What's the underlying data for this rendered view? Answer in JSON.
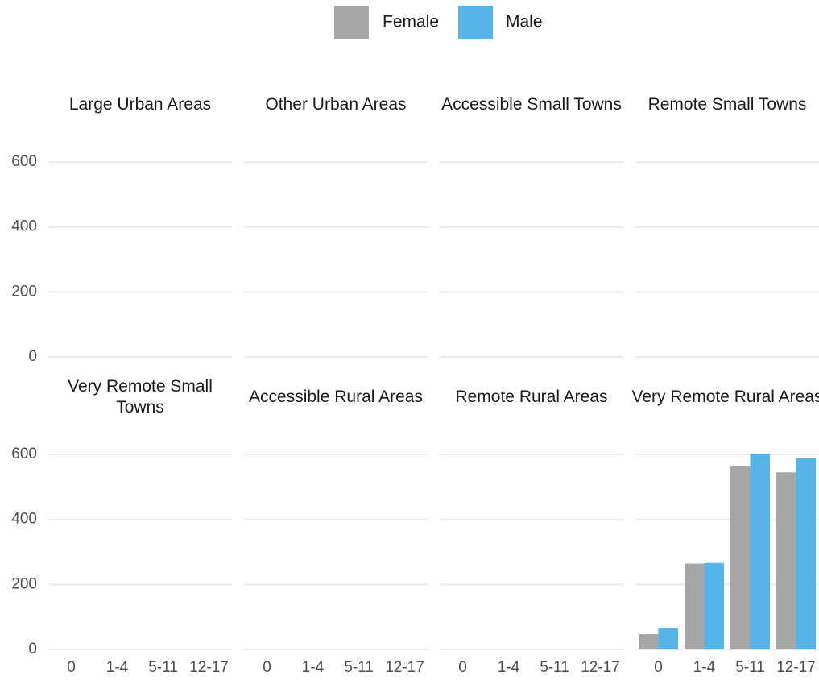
{
  "chart_data": [
    {
      "type": "bar",
      "title": "Large Urban Areas",
      "categories": [
        "0",
        "1-4",
        "5-11",
        "12-17"
      ],
      "ylim": [
        0,
        630
      ],
      "yticks": [
        0,
        200,
        400,
        600
      ],
      "grid": true,
      "series": [
        {
          "name": "Female",
          "color": "#a6a6a6",
          "values": [
            null,
            null,
            null,
            null
          ]
        },
        {
          "name": "Male",
          "color": "#56b4e9",
          "values": [
            null,
            null,
            null,
            null
          ]
        }
      ]
    },
    {
      "type": "bar",
      "title": "Other Urban Areas",
      "categories": [
        "0",
        "1-4",
        "5-11",
        "12-17"
      ],
      "ylim": [
        0,
        630
      ],
      "yticks": [
        0,
        200,
        400,
        600
      ],
      "grid": true,
      "series": [
        {
          "name": "Female",
          "color": "#a6a6a6",
          "values": [
            null,
            null,
            null,
            null
          ]
        },
        {
          "name": "Male",
          "color": "#56b4e9",
          "values": [
            null,
            null,
            null,
            null
          ]
        }
      ]
    },
    {
      "type": "bar",
      "title": "Accessible Small Towns",
      "categories": [
        "0",
        "1-4",
        "5-11",
        "12-17"
      ],
      "ylim": [
        0,
        630
      ],
      "yticks": [
        0,
        200,
        400,
        600
      ],
      "grid": true,
      "series": [
        {
          "name": "Female",
          "color": "#a6a6a6",
          "values": [
            null,
            null,
            null,
            null
          ]
        },
        {
          "name": "Male",
          "color": "#56b4e9",
          "values": [
            null,
            null,
            null,
            null
          ]
        }
      ]
    },
    {
      "type": "bar",
      "title": "Remote Small Towns",
      "categories": [
        "0",
        "1-4",
        "5-11",
        "12-17"
      ],
      "ylim": [
        0,
        630
      ],
      "yticks": [
        0,
        200,
        400,
        600
      ],
      "grid": true,
      "series": [
        {
          "name": "Female",
          "color": "#a6a6a6",
          "values": [
            null,
            null,
            null,
            null
          ]
        },
        {
          "name": "Male",
          "color": "#56b4e9",
          "values": [
            null,
            null,
            null,
            null
          ]
        }
      ]
    },
    {
      "type": "bar",
      "title": "Very Remote Small Towns",
      "categories": [
        "0",
        "1-4",
        "5-11",
        "12-17"
      ],
      "ylim": [
        0,
        630
      ],
      "yticks": [
        0,
        200,
        400,
        600
      ],
      "grid": true,
      "series": [
        {
          "name": "Female",
          "color": "#a6a6a6",
          "values": [
            null,
            null,
            null,
            null
          ]
        },
        {
          "name": "Male",
          "color": "#56b4e9",
          "values": [
            null,
            null,
            null,
            null
          ]
        }
      ]
    },
    {
      "type": "bar",
      "title": "Accessible Rural Areas",
      "categories": [
        "0",
        "1-4",
        "5-11",
        "12-17"
      ],
      "ylim": [
        0,
        630
      ],
      "yticks": [
        0,
        200,
        400,
        600
      ],
      "grid": true,
      "series": [
        {
          "name": "Female",
          "color": "#a6a6a6",
          "values": [
            null,
            null,
            null,
            null
          ]
        },
        {
          "name": "Male",
          "color": "#56b4e9",
          "values": [
            null,
            null,
            null,
            null
          ]
        }
      ]
    },
    {
      "type": "bar",
      "title": "Remote Rural Areas",
      "categories": [
        "0",
        "1-4",
        "5-11",
        "12-17"
      ],
      "ylim": [
        0,
        630
      ],
      "yticks": [
        0,
        200,
        400,
        600
      ],
      "grid": true,
      "series": [
        {
          "name": "Female",
          "color": "#a6a6a6",
          "values": [
            null,
            null,
            null,
            null
          ]
        },
        {
          "name": "Male",
          "color": "#56b4e9",
          "values": [
            null,
            null,
            null,
            null
          ]
        }
      ]
    },
    {
      "type": "bar",
      "title": "Very Remote Rural Areas",
      "categories": [
        "0",
        "1-4",
        "5-11",
        "12-17"
      ],
      "ylim": [
        0,
        630
      ],
      "yticks": [
        0,
        200,
        400,
        600
      ],
      "grid": true,
      "series": [
        {
          "name": "Female",
          "color": "#a6a6a6",
          "values": [
            47,
            264,
            563,
            545
          ]
        },
        {
          "name": "Male",
          "color": "#56b4e9",
          "values": [
            65,
            266,
            602,
            588
          ]
        }
      ]
    }
  ]
}
